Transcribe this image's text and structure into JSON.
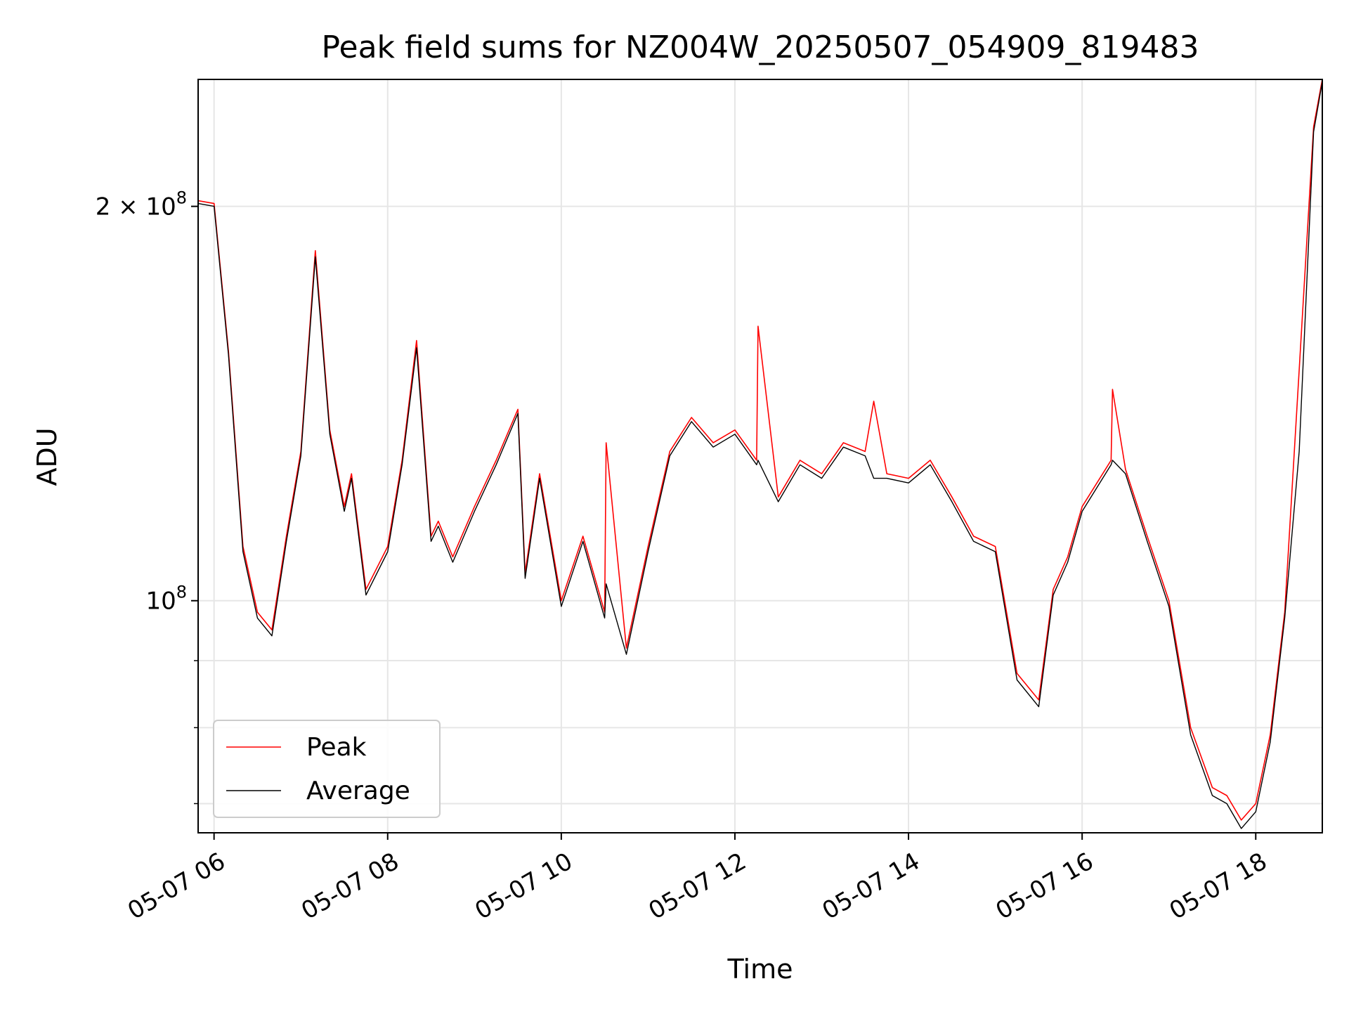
{
  "chart_data": {
    "type": "line",
    "title": "Peak field sums for NZ004W_20250507_054909_819483",
    "xlabel": "Time",
    "ylabel": "ADU",
    "yscale": "log",
    "ylim": [
      66500000,
      250000000
    ],
    "xlim": [
      "2025-05-07 05:49",
      "2025-05-07 18:46"
    ],
    "x_ticks": [
      "05-07 06",
      "05-07 08",
      "05-07 10",
      "05-07 12",
      "05-07 14",
      "05-07 16",
      "05-07 18"
    ],
    "y_major_ticks": [
      {
        "value": 100000000,
        "mantissa": "",
        "base": "10",
        "exp": "8"
      },
      {
        "value": 200000000,
        "mantissa": "2 × ",
        "base": "10",
        "exp": "8"
      }
    ],
    "y_minor_ticks": [
      70000000,
      80000000,
      90000000
    ],
    "grid": true,
    "legend": {
      "position": "lower-left"
    },
    "x_format": "MM-DD HH",
    "series": [
      {
        "name": "Peak",
        "color": "#ff0000",
        "x": [
          "05:49",
          "06:00",
          "06:10",
          "06:20",
          "06:30",
          "06:40",
          "06:50",
          "07:00",
          "07:10",
          "07:20",
          "07:30",
          "07:35",
          "07:45",
          "08:00",
          "08:10",
          "08:20",
          "08:30",
          "08:35",
          "08:45",
          "09:00",
          "09:15",
          "09:30",
          "09:35",
          "09:45",
          "10:00",
          "10:15",
          "10:30",
          "10:31",
          "10:45",
          "11:00",
          "11:15",
          "11:30",
          "11:45",
          "12:00",
          "12:15",
          "12:16",
          "12:30",
          "12:45",
          "13:00",
          "13:15",
          "13:30",
          "13:36",
          "13:45",
          "14:00",
          "14:15",
          "14:30",
          "14:45",
          "15:00",
          "15:15",
          "15:30",
          "15:40",
          "15:50",
          "16:00",
          "16:20",
          "16:21",
          "16:30",
          "16:45",
          "17:00",
          "17:15",
          "17:30",
          "17:40",
          "17:50",
          "18:00",
          "18:10",
          "18:20",
          "18:30",
          "18:40",
          "18:46"
        ],
        "y": [
          202000000,
          201000000,
          155000000,
          110000000,
          98000000,
          95000000,
          112000000,
          130000000,
          185000000,
          135000000,
          118000000,
          125000000,
          102000000,
          110000000,
          128000000,
          158000000,
          112000000,
          115000000,
          108000000,
          118000000,
          128000000,
          140000000,
          105000000,
          125000000,
          100000000,
          112000000,
          98000000,
          132000000,
          92000000,
          110000000,
          130000000,
          138000000,
          132000000,
          135000000,
          128000000,
          162000000,
          120000000,
          128000000,
          125000000,
          132000000,
          130000000,
          142000000,
          125000000,
          124000000,
          128000000,
          120000000,
          112000000,
          110000000,
          88000000,
          84000000,
          102000000,
          108000000,
          118000000,
          128000000,
          145000000,
          126000000,
          112000000,
          100000000,
          80000000,
          72000000,
          71000000,
          68000000,
          70000000,
          79000000,
          98000000,
          150000000,
          230000000,
          250000000
        ]
      },
      {
        "name": "Average",
        "color": "#000000",
        "x": [
          "05:49",
          "06:00",
          "06:10",
          "06:20",
          "06:30",
          "06:40",
          "06:50",
          "07:00",
          "07:10",
          "07:20",
          "07:30",
          "07:35",
          "07:45",
          "08:00",
          "08:10",
          "08:20",
          "08:30",
          "08:35",
          "08:45",
          "09:00",
          "09:15",
          "09:30",
          "09:35",
          "09:45",
          "10:00",
          "10:15",
          "10:30",
          "10:31",
          "10:45",
          "11:00",
          "11:15",
          "11:30",
          "11:45",
          "12:00",
          "12:15",
          "12:16",
          "12:30",
          "12:45",
          "13:00",
          "13:15",
          "13:30",
          "13:36",
          "13:45",
          "14:00",
          "14:15",
          "14:30",
          "14:45",
          "15:00",
          "15:15",
          "15:30",
          "15:40",
          "15:50",
          "16:00",
          "16:20",
          "16:21",
          "16:30",
          "16:45",
          "17:00",
          "17:15",
          "17:30",
          "17:40",
          "17:50",
          "18:00",
          "18:10",
          "18:20",
          "18:30",
          "18:40",
          "18:46"
        ],
        "y": [
          201000000,
          200000000,
          154000000,
          109000000,
          97000000,
          94000000,
          111000000,
          129000000,
          183000000,
          134000000,
          117000000,
          124000000,
          101000000,
          109000000,
          127000000,
          156000000,
          111000000,
          114000000,
          107000000,
          117000000,
          127000000,
          139000000,
          104000000,
          124000000,
          99000000,
          111000000,
          97000000,
          103000000,
          91000000,
          109000000,
          129000000,
          137000000,
          131000000,
          134000000,
          127000000,
          128000000,
          119000000,
          127000000,
          124000000,
          131000000,
          129000000,
          124000000,
          124000000,
          123000000,
          127000000,
          119000000,
          111000000,
          109000000,
          87000000,
          83000000,
          101000000,
          107000000,
          117000000,
          127000000,
          128000000,
          125000000,
          111000000,
          99000000,
          79000000,
          71000000,
          70000000,
          67000000,
          69000000,
          78000000,
          97000000,
          130000000,
          228000000,
          249000000
        ]
      }
    ]
  }
}
